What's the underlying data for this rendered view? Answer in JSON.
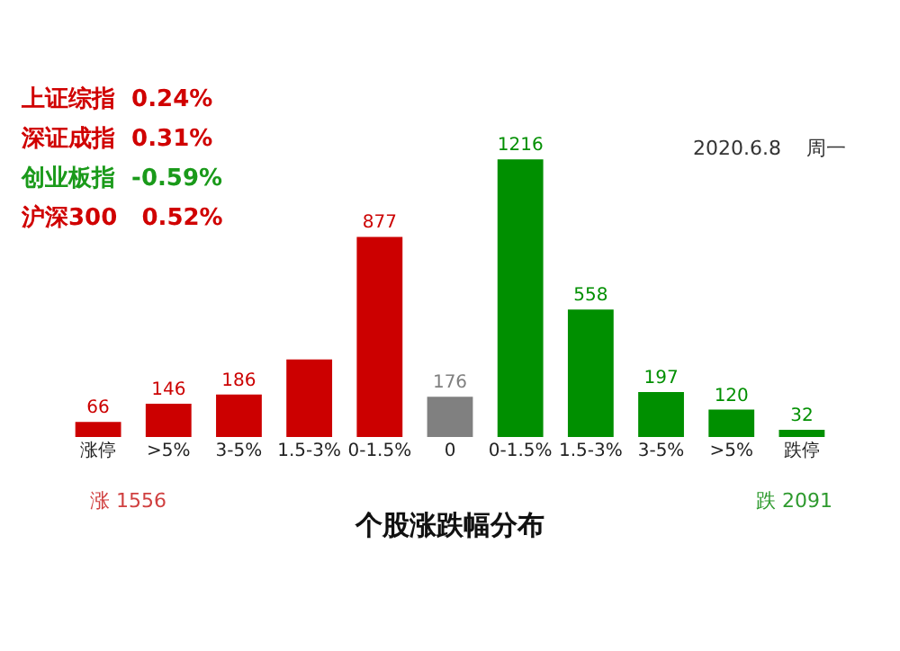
{
  "chart_data": {
    "type": "bar",
    "title": "个股涨跌幅分布",
    "categories": [
      "涨停",
      ">5%",
      "3-5%",
      "1.5-3%",
      "0-1.5%",
      "0",
      "0-1.5%",
      "1.5-3%",
      "3-5%",
      ">5%",
      "跌停"
    ],
    "values": [
      66,
      146,
      186,
      340,
      877,
      176,
      1216,
      558,
      197,
      120,
      32
    ],
    "colors": [
      "#cc0000",
      "#cc0000",
      "#cc0000",
      "#cc0000",
      "#cc0000",
      "#808080",
      "#008f00",
      "#008f00",
      "#008f00",
      "#008f00",
      "#008f00"
    ],
    "value_labels": [
      "66",
      "146",
      "186",
      null,
      "877",
      "176",
      "1216",
      "558",
      "197",
      "120",
      "32"
    ],
    "tick_labels": "x",
    "annotations": [
      "上证综指  0.24%",
      "深证成指  0.31%",
      "创业板指  -0.59%",
      "沪深300   0.52%",
      "2020.6.8    周一",
      "涨 1556",
      "跌 2091"
    ]
  }
}
